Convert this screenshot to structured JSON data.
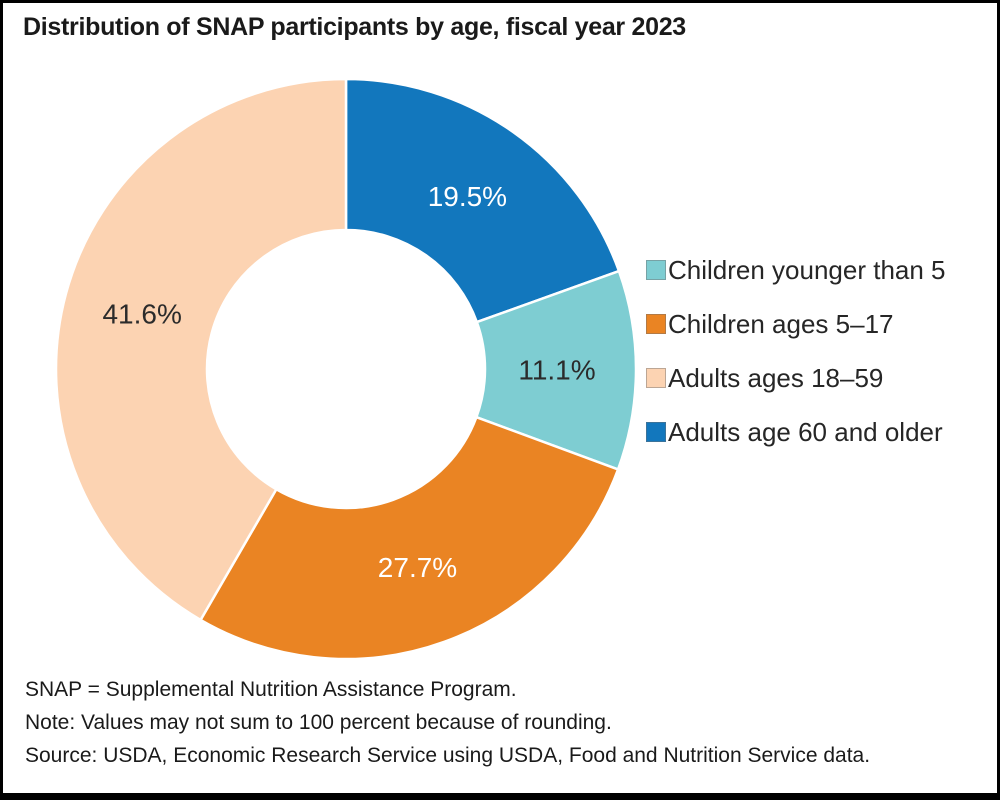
{
  "title": "Distribution of SNAP participants by age, fiscal year 2023",
  "chart_data": {
    "type": "pie",
    "subtype": "donut",
    "title": "Distribution of SNAP participants by age, fiscal year 2023",
    "unit": "%",
    "labels_inside": true,
    "donut_hole_ratio": 0.48,
    "legend_position": "right",
    "start_angle_deg": 0,
    "draw_sequence": [
      3,
      0,
      1,
      2
    ],
    "segments": [
      {
        "label": "Children younger than 5",
        "value": 11.1,
        "color": "#7ECDD2",
        "label_color": "#2b2b2b"
      },
      {
        "label": "Children ages 5–17",
        "value": 27.7,
        "color": "#EA8423",
        "label_color": "#ffffff"
      },
      {
        "label": "Adults ages 18–59",
        "value": 41.6,
        "color": "#FCD3B2",
        "label_color": "#2b2b2b"
      },
      {
        "label": "Adults age 60 and older",
        "value": 19.5,
        "color": "#1277BD",
        "label_color": "#ffffff"
      }
    ],
    "slice_value_labels": [
      "11.1%",
      "27.7%",
      "41.6%",
      "19.5%"
    ]
  },
  "footnotes": {
    "line1": "SNAP = Supplemental Nutrition Assistance Program.",
    "line2": "Note: Values may not sum to 100 percent because of rounding.",
    "line3": "Source: USDA, Economic Research Service using USDA, Food and Nutrition Service data."
  },
  "colors": {
    "background": "#ffffff",
    "frame_border": "#000000",
    "title_text": "#1a1a1a",
    "footnote_text": "#1a1a1a",
    "legend_text": "#262626",
    "slice_separator": "#ffffff"
  }
}
